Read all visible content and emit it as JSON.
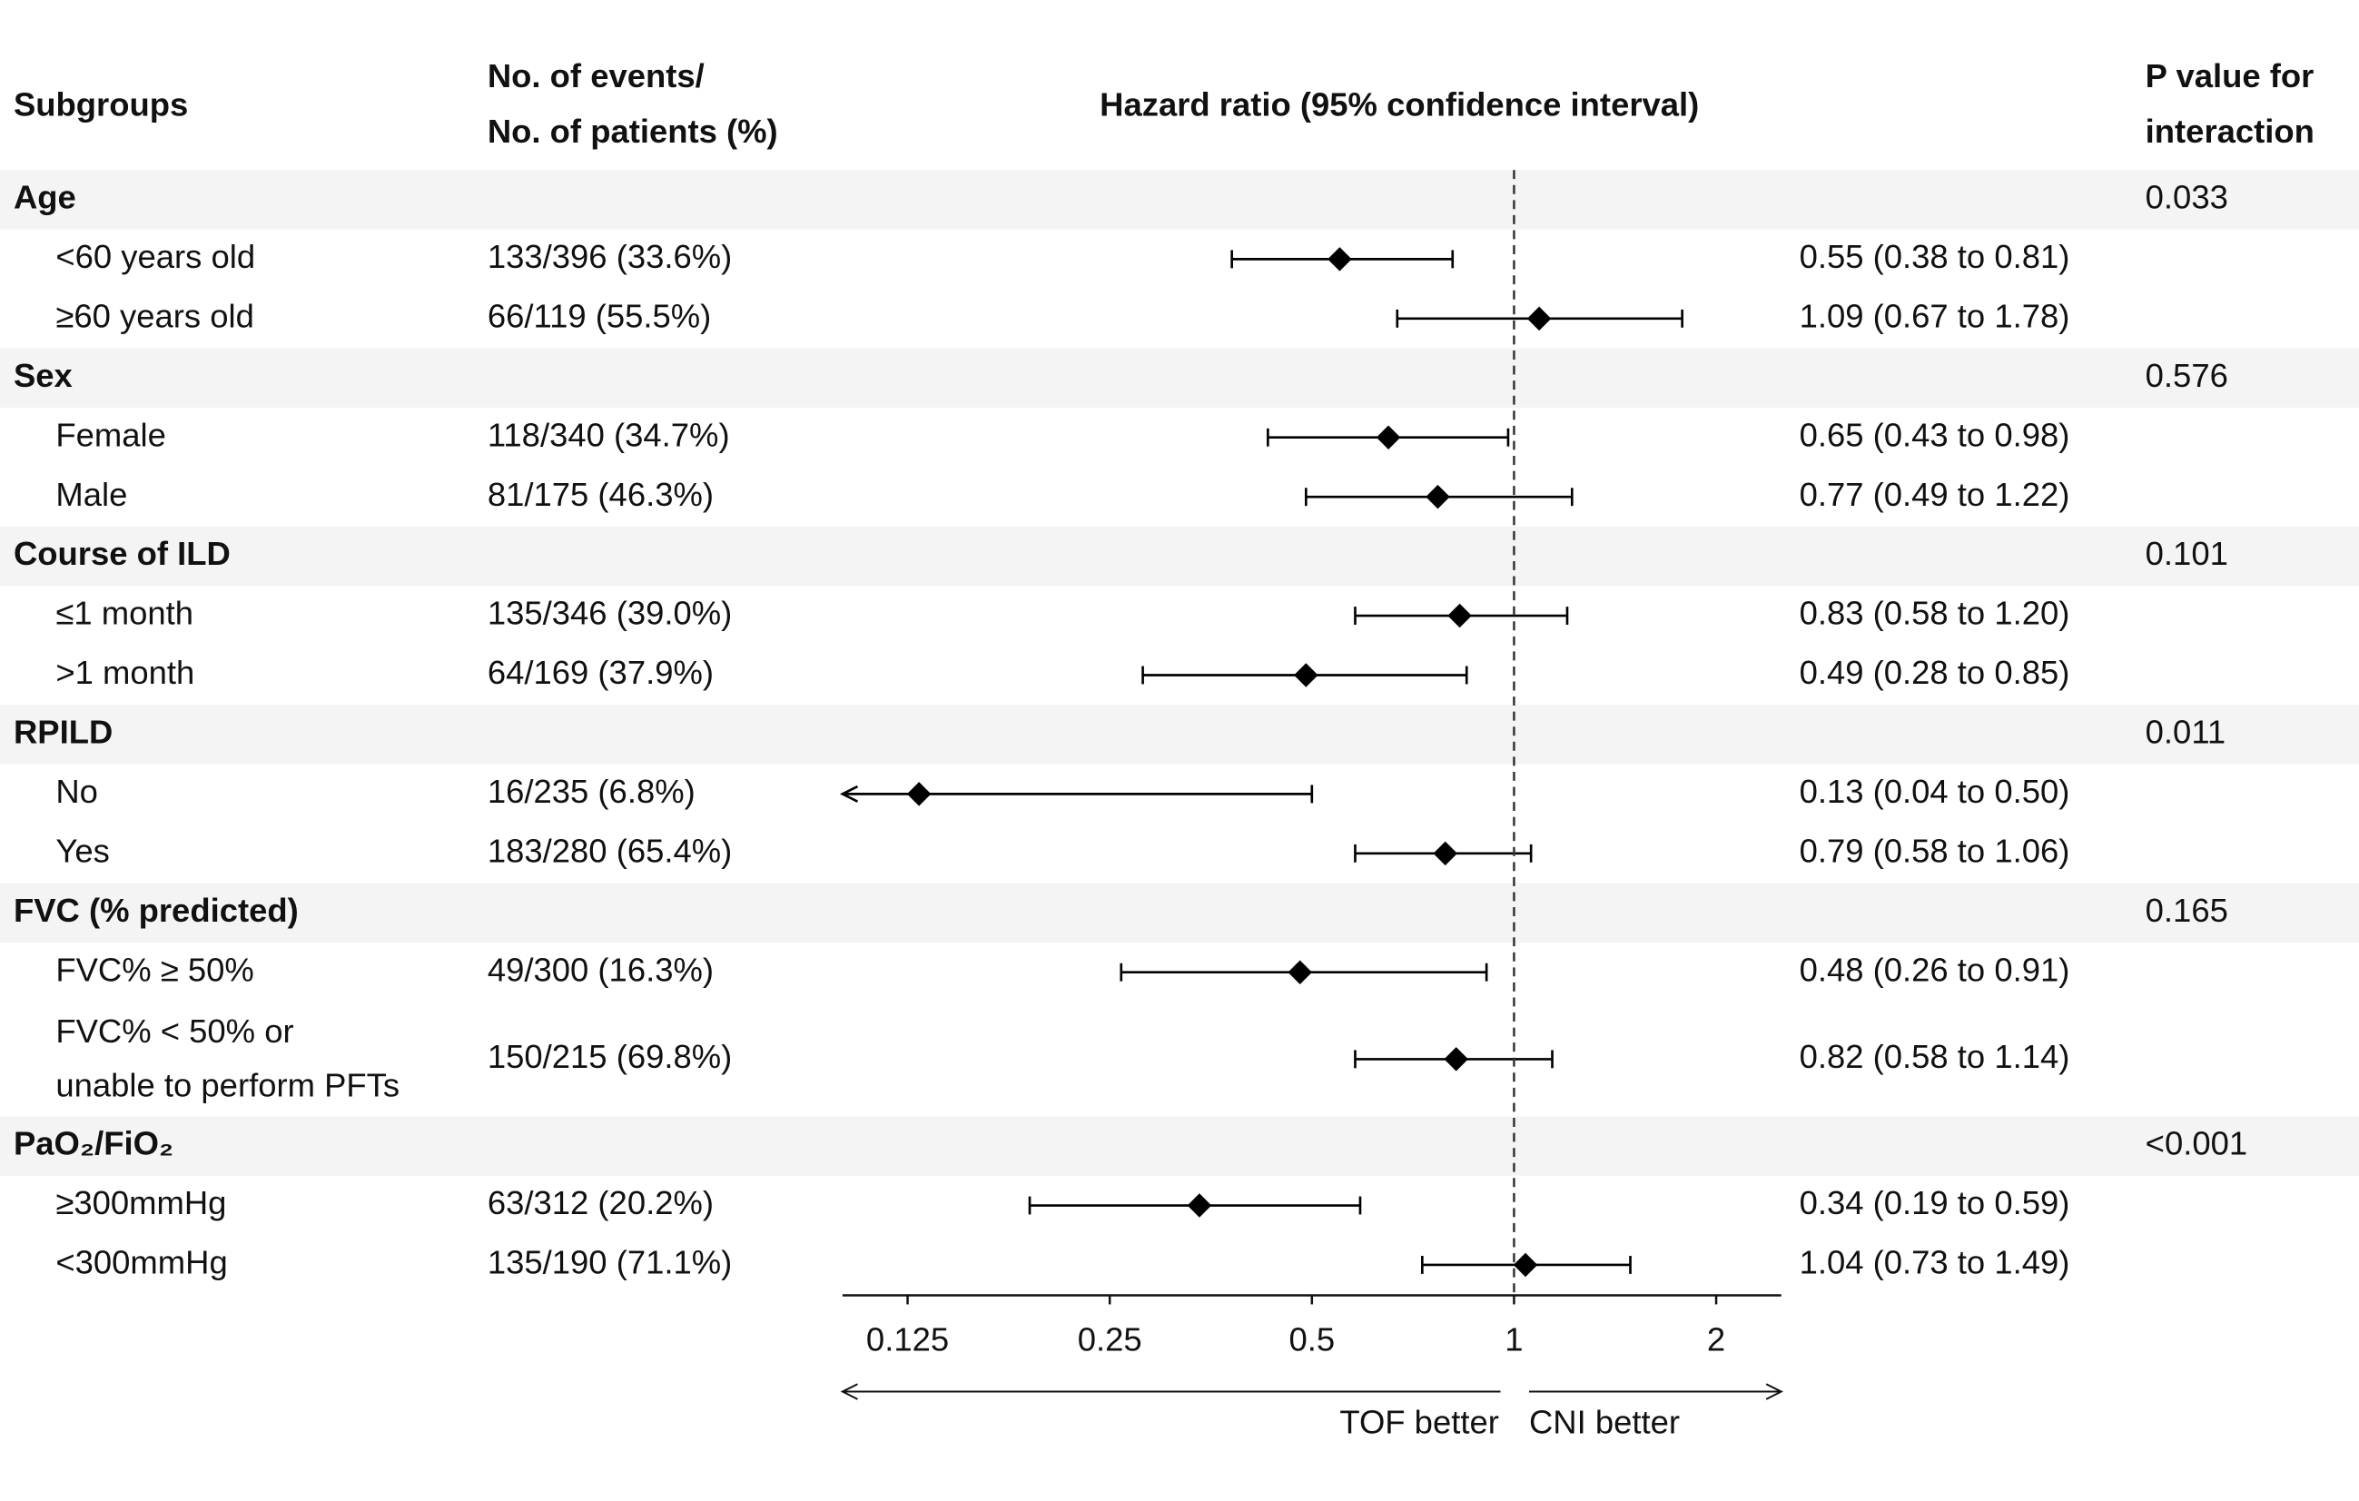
{
  "chart_data": {
    "type": "forest",
    "column_headers": {
      "subgroup": "Subgroups",
      "events": [
        "No. of events/",
        "No. of patients (%)"
      ],
      "effect": "Hazard ratio (95% confidence interval)",
      "p": [
        "P value for",
        "interaction"
      ]
    },
    "xscale": "log",
    "xlim": [
      0.1,
      2.5
    ],
    "xticks": [
      0.125,
      0.25,
      0.5,
      1,
      2
    ],
    "reference_line": 1,
    "direction_labels": [
      "TOF better",
      "CNI better"
    ],
    "color": "#000000",
    "groups": [
      {
        "name": "Age",
        "p_value": "0.033",
        "rows": [
          {
            "label": "<60 years old",
            "events": "133/396 (33.6%)",
            "hr": 0.55,
            "lower": 0.38,
            "upper": 0.81,
            "hr_label": "0.55 (0.38 to 0.81)"
          },
          {
            "label": "≥60 years old",
            "events": "66/119 (55.5%)",
            "hr": 1.09,
            "lower": 0.67,
            "upper": 1.78,
            "hr_label": "1.09 (0.67 to 1.78)"
          }
        ]
      },
      {
        "name": "Sex",
        "p_value": "0.576",
        "rows": [
          {
            "label": "Female",
            "events": "118/340 (34.7%)",
            "hr": 0.65,
            "lower": 0.43,
            "upper": 0.98,
            "hr_label": "0.65 (0.43 to 0.98)"
          },
          {
            "label": "Male",
            "events": "81/175 (46.3%)",
            "hr": 0.77,
            "lower": 0.49,
            "upper": 1.22,
            "hr_label": "0.77 (0.49 to 1.22)"
          }
        ]
      },
      {
        "name": "Course of ILD",
        "p_value": "0.101",
        "rows": [
          {
            "label": "≤1 month",
            "events": "135/346 (39.0%)",
            "hr": 0.83,
            "lower": 0.58,
            "upper": 1.2,
            "hr_label": "0.83 (0.58 to 1.20)"
          },
          {
            "label": ">1 month",
            "events": "64/169 (37.9%)",
            "hr": 0.49,
            "lower": 0.28,
            "upper": 0.85,
            "hr_label": "0.49 (0.28 to 0.85)"
          }
        ]
      },
      {
        "name": "RPILD",
        "p_value": "0.011",
        "rows": [
          {
            "label": "No",
            "events": "16/235 (6.8%)",
            "hr": 0.13,
            "lower": 0.04,
            "upper": 0.5,
            "hr_label": "0.13 (0.04 to 0.50)"
          },
          {
            "label": "Yes",
            "events": "183/280 (65.4%)",
            "hr": 0.79,
            "lower": 0.58,
            "upper": 1.06,
            "hr_label": "0.79 (0.58 to 1.06)"
          }
        ]
      },
      {
        "name": "FVC  (% predicted)",
        "p_value": "0.165",
        "rows": [
          {
            "label": "FVC% ≥ 50%",
            "events": "49/300 (16.3%)",
            "hr": 0.48,
            "lower": 0.26,
            "upper": 0.91,
            "hr_label": "0.48 (0.26 to 0.91)"
          },
          {
            "label": [
              "FVC% < 50% or",
              "unable to perform PFTs"
            ],
            "events": "150/215 (69.8%)",
            "hr": 0.82,
            "lower": 0.58,
            "upper": 1.14,
            "hr_label": "0.82 (0.58 to 1.14)"
          }
        ]
      },
      {
        "name": "PaO₂/FiO₂",
        "p_value": "<0.001",
        "rows": [
          {
            "label": "≥300mmHg",
            "events": "63/312 (20.2%)",
            "hr": 0.34,
            "lower": 0.19,
            "upper": 0.59,
            "hr_label": "0.34 (0.19 to 0.59)"
          },
          {
            "label": "<300mmHg",
            "events": "135/190 (71.1%)",
            "hr": 1.04,
            "lower": 0.73,
            "upper": 1.49,
            "hr_label": "1.04 (0.73 to 1.49)"
          }
        ]
      }
    ]
  }
}
